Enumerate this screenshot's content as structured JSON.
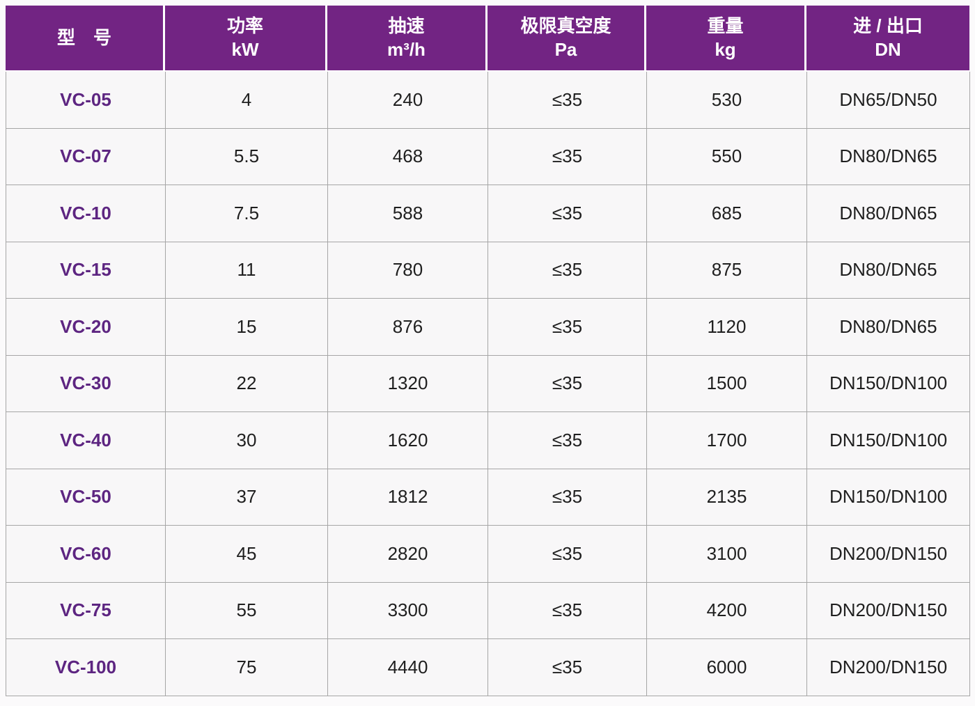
{
  "theme": {
    "header_bg": "#722483",
    "header_text": "#ffffff",
    "model_text": "#5d2581",
    "cell_bg": "#f8f7f8",
    "border_color": "#a6a6a6",
    "body_text": "#1f1f1f",
    "page_bg": "#fbfafb"
  },
  "table": {
    "column_keys": [
      "model",
      "power-kw",
      "speed-m3h",
      "vacuum-pa",
      "weight-kg",
      "ports-dn"
    ],
    "headers": [
      {
        "title": "型　号",
        "sub": ""
      },
      {
        "title": "功率",
        "sub": "kW"
      },
      {
        "title": "抽速",
        "sub": "m³/h"
      },
      {
        "title": "极限真空度",
        "sub": "Pa"
      },
      {
        "title": "重量",
        "sub": "kg"
      },
      {
        "title": "进 / 出口",
        "sub": "DN"
      }
    ],
    "rows": [
      [
        "VC-05",
        "4",
        "240",
        "≤35",
        "530",
        "DN65/DN50"
      ],
      [
        "VC-07",
        "5.5",
        "468",
        "≤35",
        "550",
        "DN80/DN65"
      ],
      [
        "VC-10",
        "7.5",
        "588",
        "≤35",
        "685",
        "DN80/DN65"
      ],
      [
        "VC-15",
        "11",
        "780",
        "≤35",
        "875",
        "DN80/DN65"
      ],
      [
        "VC-20",
        "15",
        "876",
        "≤35",
        "1120",
        "DN80/DN65"
      ],
      [
        "VC-30",
        "22",
        "1320",
        "≤35",
        "1500",
        "DN150/DN100"
      ],
      [
        "VC-40",
        "30",
        "1620",
        "≤35",
        "1700",
        "DN150/DN100"
      ],
      [
        "VC-50",
        "37",
        "1812",
        "≤35",
        "2135",
        "DN150/DN100"
      ],
      [
        "VC-60",
        "45",
        "2820",
        "≤35",
        "3100",
        "DN200/DN150"
      ],
      [
        "VC-75",
        "55",
        "3300",
        "≤35",
        "4200",
        "DN200/DN150"
      ],
      [
        "VC-100",
        "75",
        "4440",
        "≤35",
        "6000",
        "DN200/DN150"
      ]
    ]
  }
}
